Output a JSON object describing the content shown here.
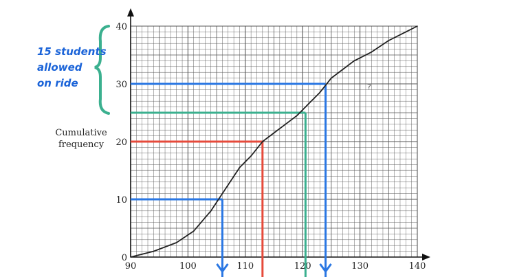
{
  "chart_data": {
    "type": "line",
    "title": "",
    "ylabel": [
      "Cumulative",
      "frequency"
    ],
    "xlabel": "",
    "xlim": [
      90,
      140
    ],
    "ylim": [
      0,
      40
    ],
    "xticks": [
      90,
      100,
      110,
      120,
      130,
      140
    ],
    "yticks": [
      0,
      10,
      20,
      30,
      40
    ],
    "grid": true,
    "series": [
      {
        "x": [
          90,
          94,
          98,
          101,
          104,
          107,
          109,
          111,
          113,
          115,
          117,
          119,
          121,
          123,
          125,
          127,
          129,
          132,
          135,
          138,
          140
        ],
        "y": [
          0,
          1,
          2.5,
          4.5,
          8,
          12.5,
          15.5,
          17.5,
          20,
          21.5,
          23,
          24.5,
          26.5,
          28.5,
          31,
          32.5,
          34,
          35.5,
          37.5,
          39,
          40
        ],
        "color": "#222222"
      }
    ],
    "reference_lines": [
      {
        "y": 10,
        "x": 106,
        "color": "#2a77e3"
      },
      {
        "y": 20,
        "x": 113,
        "color": "#e64a3b"
      },
      {
        "y": 25,
        "x": 120.5,
        "color": "#3bb08f"
      },
      {
        "y": 30,
        "x": 124,
        "color": "#2a77e3"
      }
    ]
  },
  "annotation": {
    "lines": [
      "15 students",
      "allowed",
      "on ride"
    ],
    "color": "#1a63d8",
    "bracket_color": "#3bb08f"
  },
  "stray_mark": "?"
}
